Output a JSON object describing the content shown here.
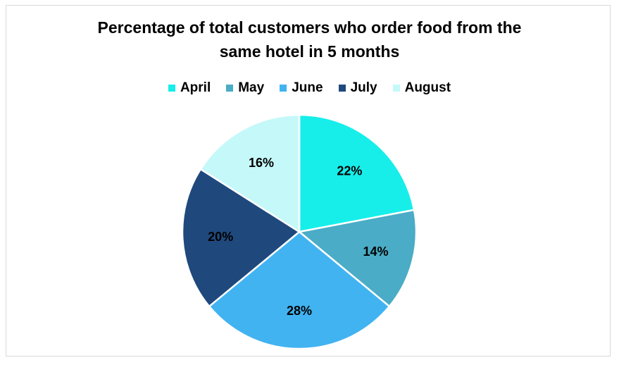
{
  "chart_data": {
    "type": "pie",
    "title_lines": [
      "Percentage of total customers who order food from the",
      "same hotel in 5 months"
    ],
    "categories": [
      "April",
      "May",
      "June",
      "July",
      "August"
    ],
    "values": [
      22,
      14,
      28,
      20,
      16
    ],
    "labels": [
      "22%",
      "14%",
      "28%",
      "20%",
      "16%"
    ],
    "colors": [
      "#17eeea",
      "#4aacc6",
      "#41b3f1",
      "#1f497d",
      "#c5f8f9"
    ],
    "legend_position": "top",
    "start_angle": "12 o'clock",
    "direction": "clockwise"
  }
}
